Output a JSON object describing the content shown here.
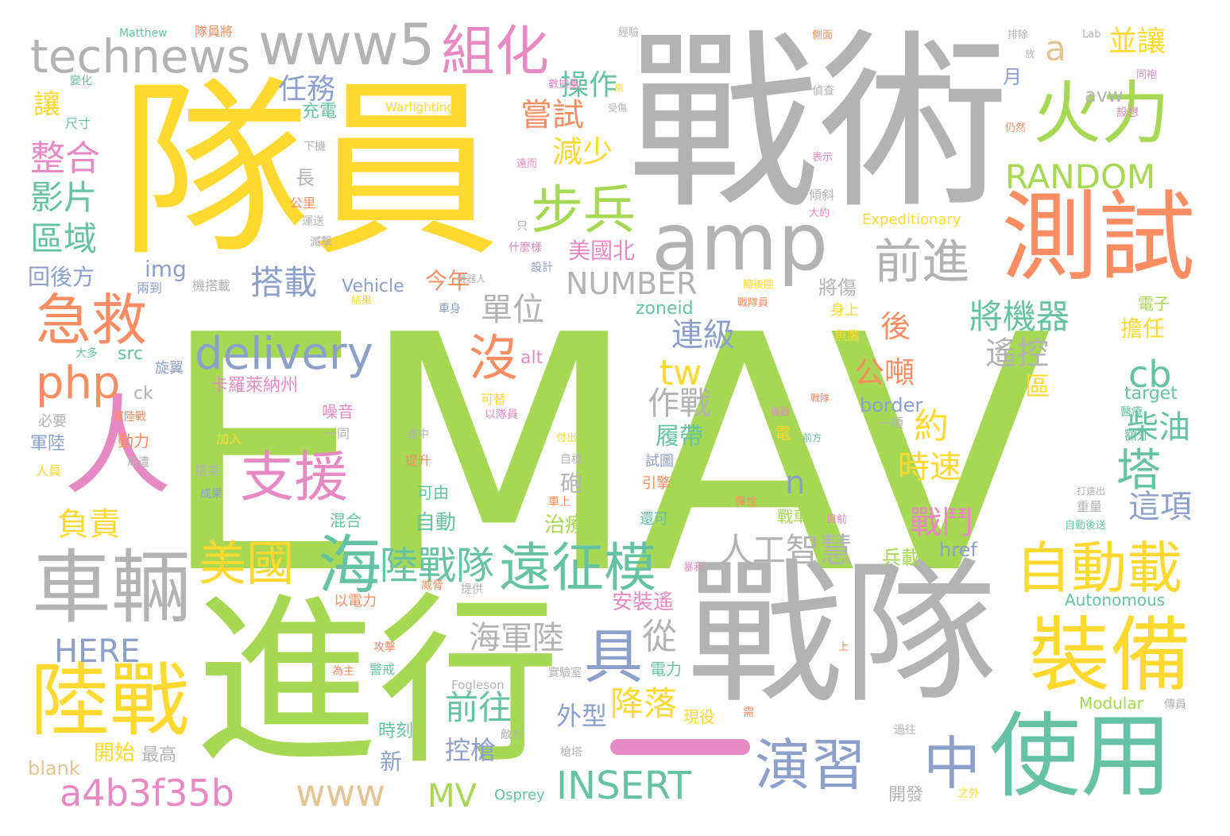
{
  "palette": {
    "green": "#a6d854",
    "yellow": "#ffd92f",
    "gray": "#b3b3b3",
    "orange": "#fc8d62",
    "teal": "#66c2a5",
    "blue": "#8da0cb",
    "pink": "#e78ac3",
    "tan": "#e5c494"
  },
  "words": {
    "emav": "EMAV",
    "dui_yuan": "隊員",
    "zhan_shu": "戰術",
    "jin_xing": "進行",
    "zhan_dui": "戰隊",
    "ce_shi": "測試",
    "shi_yong": "使用",
    "zhuang_bei": "裝備",
    "che_liang": "車輛",
    "lu_zhan": "陸戰",
    "huo_li": "火力",
    "amp": "amp",
    "www5": "www5",
    "technews": "technews",
    "zu_hua": "組化",
    "bu_bing": "步兵",
    "ji_jiu": "急救",
    "ren": "人",
    "delivery": "delivery",
    "php": "php",
    "zhi_yuan": "支援",
    "mei_guo": "美國",
    "hai": "海",
    "lu_zhan_dui": "陸戰隊",
    "yuan_zheng_mo": "遠征模",
    "zi_dong_zai": "自動載",
    "yan_xi": "演習",
    "zhong": "中",
    "a4b3f35b": "a4b3f35b",
    "www": "www",
    "insert": "INSERT",
    "mv": "MV",
    "here": "HERE",
    "ju": "具",
    "mei": "沒",
    "tw": "tw",
    "cb": "cb",
    "random": "RANDOM",
    "qian_jin": "前進",
    "number": "NUMBER",
    "ta": "塔",
    "n": "n",
    "ren_gong_zhi_hui": "人工智慧",
    "jiang_ji_qi": "將機器",
    "yao_kong": "遙控",
    "chai_you": "柴油",
    "lian_ji": "連級",
    "zuo_zhan": "作戰",
    "gong_dun": "公噸",
    "yue": "約",
    "shi_su": "時速",
    "zhan_dou": "戰鬥",
    "jiang_luo": "降落",
    "qian_wang": "前往",
    "hai_jun_lu": "海軍陸",
    "kong_qiang": "控槍",
    "wai_xing": "外型",
    "zhi_liao": "治療",
    "zi_dong": "自動",
    "pao": "砲",
    "cong": "從",
    "lu_dai": "履帶",
    "dan_wei": "單位",
    "jin_nian": "今年",
    "mei_guo_bei": "美國北",
    "da_zai": "搭載",
    "ren_wu": "任務",
    "zheng_he": "整合",
    "ying_pian": "影片",
    "qu_yu": "區域",
    "hui_hou_fang": "回後方",
    "rang": "讓",
    "chong_dian": "充電",
    "cao_zuo": "操作",
    "chang_shi": "嘗試",
    "jian_shao": "減少",
    "chang": "長",
    "img": "img",
    "vehicle": "Vehicle",
    "a": "a",
    "bing_rang": "並讓",
    "avw": "avw",
    "yue_month": "月",
    "zoneid": "zoneid",
    "src": "src",
    "alt": "alt",
    "ck": "ck",
    "hou": "後",
    "border": "border",
    "qu": "區",
    "target": "target",
    "dan_ren": "擔任",
    "fu_ze": "負責",
    "zhe_xiang": "這項",
    "ka_luo_lai_na_zhou": "卡羅萊納州",
    "kai_shi": "開始",
    "xin": "新",
    "blank": "blank",
    "zui_gao": "最高",
    "shi_ke": "時刻",
    "bing_zai": "兵載",
    "href": "href",
    "an_zhuang_yao": "安裝遙",
    "autonomous": "Autonomous",
    "modular": "Modular",
    "osprey": "Osprey",
    "expeditionary": "Expeditionary",
    "warfighting": "Warfighting",
    "fogleson": "Fogleson",
    "matthew": "Matthew",
    "lab": "Lab",
    "kai_fa": "開發",
    "zhan_che": "戰車",
    "dian_li": "電力",
    "xian_yi": "現役",
    "jiang_shang": "將傷",
    "shen_shang": "身上",
    "yu_ying": "魚鷹",
    "dian_zi": "電子",
    "e_wai": "額外",
    "yi_xiang": "一項",
    "jun_lu": "軍陸",
    "dong_li": "動力",
    "ren_yuan": "人員",
    "bi_yao": "必要",
    "zao_yin": "噪音",
    "jia_ru": "加入",
    "yi_tong": "一同",
    "ke_you": "可由",
    "hun_he": "混合",
    "ti_sheng": "提升",
    "tu_zhong": "途中",
    "yin_qing": "引擎",
    "shi_tu": "試圖",
    "huan_ke": "還可",
    "zhong_liang": "重量",
    "da_yuan_chu": "打遠出",
    "zi_dong_hou_song": "自動後送",
    "dui_yuan_jiang": "隊員將",
    "bian_hua": "變化",
    "chi_cun": "尺寸",
    "xia_ji": "下機",
    "gong_li": "公里",
    "yun_song": "運送",
    "mie_di": "滅擊",
    "zhi": "只",
    "shen_me_yang": "什麼樣",
    "she_ji": "設計",
    "liang_dao": "兩到",
    "ji_da_zai": "機搭載",
    "da_duo": "大多",
    "xuan_yi": "旋翼",
    "jun_lu_zhan": "軍陸戰",
    "zhou_zao": "周遭",
    "da_cheng": "搭乘",
    "cheng_guo": "成果",
    "yi_dian_li": "以電力",
    "gong_ji": "攻擊",
    "wei_zhu": "為主",
    "jing_jie": "警戒",
    "ke_ti": "可替",
    "yi_dui_yuan": "以隊員",
    "che_shen": "車身",
    "mu_biao": "目標",
    "che_shang": "車上",
    "tan_xing": "彈性",
    "wei_xie": "威脅",
    "ti_gong": "提供",
    "shi_yan_shi": "實驗室",
    "di_fang": "敵方",
    "qiang_ta": "槍塔",
    "xu": "需",
    "guo_wang": "過往",
    "zhi_wai": "之外",
    "chuan_yuan": "傳員",
    "yi_liao": "醫療",
    "ji_qi": "機器",
    "zhan_dui_yuan": "戰隊員",
    "sui_hou_lu": "隨後陸",
    "jie_guo": "結果",
    "qing_xie": "傾斜",
    "da_yue": "大約",
    "biao_shi": "表示",
    "zhen_cha": "偵查",
    "ce_mian": "側面",
    "jing_yan": "經驗",
    "pai_chu": "排除",
    "fang": "放",
    "tong_bao": "同袍",
    "she_xiang": "設想",
    "reng_ran": "仍然",
    "shu_ju_liang": "數據量",
    "lai": "來",
    "shou_shang": "受傷",
    "yuan_er": "遠而",
    "zhan_dui_small": "戰隊",
    "qian_fang": "前方",
    "ji_qi_ren": "機器人",
    "shang": "上",
    "bao_li": "暴利",
    "mu_qian": "目前",
    "fu_chu": "付出",
    "dian": "電"
  }
}
